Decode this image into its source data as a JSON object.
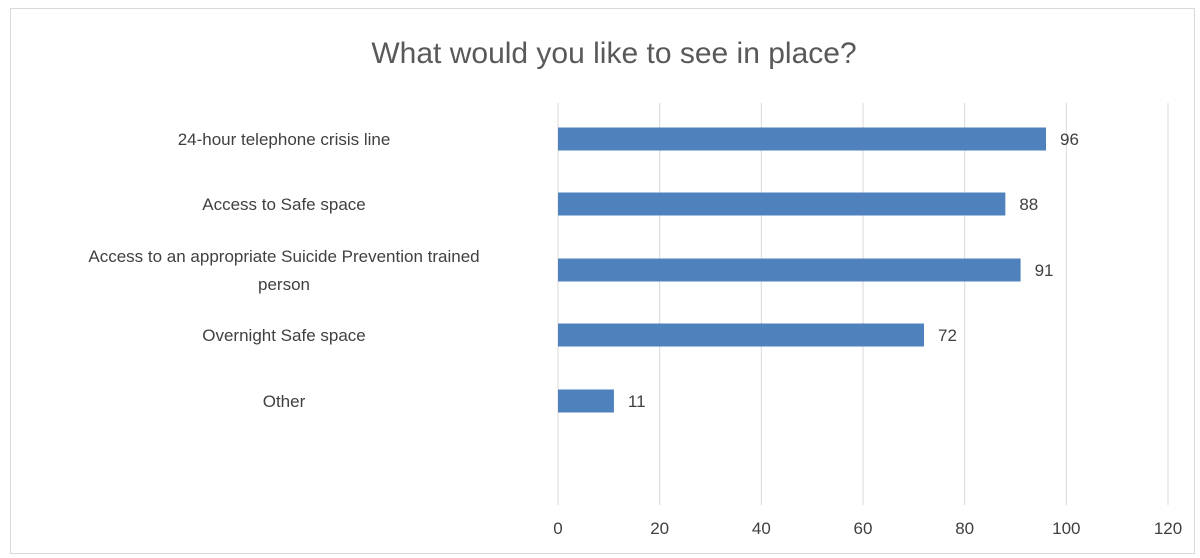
{
  "chart_data": {
    "type": "bar",
    "orientation": "horizontal",
    "title": "What would you like to see in place?",
    "categories": [
      [
        "24-hour telephone crisis line"
      ],
      [
        "Access to Safe space"
      ],
      [
        "Access to an appropriate Suicide Prevention trained",
        "person"
      ],
      [
        "Overnight Safe space"
      ],
      [
        "Other"
      ]
    ],
    "values": [
      96,
      88,
      91,
      72,
      11
    ],
    "xlim": [
      0,
      120
    ],
    "ticks": [
      0,
      20,
      40,
      60,
      80,
      100,
      120
    ],
    "grid": true,
    "legend": "none",
    "bar_color": "#4f81bd",
    "grid_color": "#d9d9d9"
  }
}
